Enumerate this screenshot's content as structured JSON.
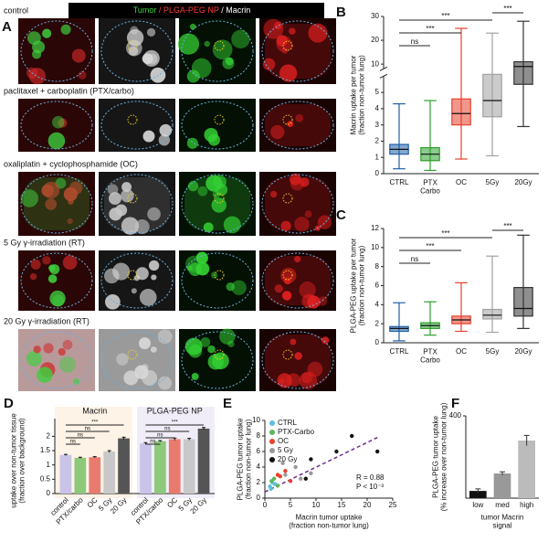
{
  "panel_a": {
    "label": "A",
    "header": [
      "Tumor",
      "/ PLGA-PEG NP",
      "/ Macrin"
    ],
    "rows": [
      "control",
      "paclitaxel + carboplatin (PTX/carbo)",
      "oxaliplatin + cyclophosphamide (OC)",
      "5 Gy γ-irradiation (RT)",
      "20 Gy γ-irradiation (RT)"
    ]
  },
  "chart_data": [
    {
      "type": "box",
      "label": "B",
      "ylabel": "Macrin uptake per tumor\n(fraction non-tumor lung)",
      "categories": [
        "CTRL",
        "PTX\nCarbo",
        "OC",
        "5Gy",
        "20Gy"
      ],
      "colors": [
        "#1f5fa8",
        "#2ca02c",
        "#e8412c",
        "#a0a0a0",
        "#333333"
      ],
      "whisker_low": [
        0.3,
        0.2,
        0.9,
        1.1,
        2.9
      ],
      "q1": [
        1.2,
        0.8,
        3.0,
        3.5,
        5.5
      ],
      "median": [
        1.5,
        1.2,
        3.7,
        4.5,
        9
      ],
      "q3": [
        1.8,
        1.6,
        4.6,
        6.5,
        11
      ],
      "whisker_high": [
        4.3,
        4.5,
        25,
        23,
        28
      ],
      "ylim": [
        0,
        30
      ],
      "ybreak": [
        6,
        8
      ],
      "yticks": [
        0,
        1,
        2,
        3,
        4,
        5,
        10,
        20,
        30
      ],
      "annotations": [
        "ns",
        "***",
        "***",
        "***"
      ]
    },
    {
      "type": "box",
      "label": "C",
      "ylabel": "PLGA-PEG uptake per tumor\n(fraction non-tumor lung)",
      "categories": [
        "CTRL",
        "PTX\nCarbo",
        "OC",
        "5Gy",
        "20Gy"
      ],
      "colors": [
        "#1f5fa8",
        "#2ca02c",
        "#e8412c",
        "#a0a0a0",
        "#333333"
      ],
      "whisker_low": [
        0.2,
        0.8,
        1.2,
        1.1,
        1.5
      ],
      "q1": [
        1.2,
        1.5,
        2.0,
        2.5,
        2.8
      ],
      "median": [
        1.5,
        1.8,
        2.4,
        2.9,
        3.6
      ],
      "q3": [
        1.7,
        2.1,
        2.8,
        3.5,
        5.8
      ],
      "whisker_high": [
        4.2,
        4.3,
        6.3,
        9.1,
        11.3
      ],
      "ylim": [
        0,
        12
      ],
      "yticks": [
        0,
        2,
        4,
        6,
        8,
        10,
        12
      ],
      "annotations": [
        "ns",
        "***",
        "***",
        "***"
      ]
    },
    {
      "type": "grouped_bar",
      "label": "D",
      "ylabel": "uptake over non-tumor tissue\n(fraction over background)",
      "categories": [
        "control",
        "PTX/carbo",
        "OC",
        "5 Gy",
        "20 Gy"
      ],
      "colors": [
        "#c9c4e8",
        "#8dc97a",
        "#e87b6e",
        "#c8c8c8",
        "#555555"
      ],
      "groups": [
        {
          "name": "Macrin",
          "values": [
            1.35,
            1.25,
            1.27,
            1.47,
            1.93
          ],
          "errors": [
            0.02,
            0.02,
            0.02,
            0.03,
            0.04
          ],
          "annotations": [
            "ns",
            "ns",
            "ns",
            "***"
          ]
        },
        {
          "name": "PLGA-PEG NP",
          "values": [
            1.75,
            1.83,
            1.9,
            1.9,
            2.27
          ],
          "errors": [
            0.03,
            0.02,
            0.04,
            0.03,
            0.04
          ],
          "annotations": [
            "ns",
            "ns",
            "ns",
            "***"
          ]
        }
      ],
      "ylim": [
        0,
        2.3
      ],
      "yticks": [
        0,
        0.5,
        1,
        1.5,
        2
      ]
    },
    {
      "type": "scatter",
      "label": "E",
      "xlabel": "Macrin tumor uptake\n(fraction non-tumor lung)",
      "ylabel": "PLGA-PEG tumor uptake\n(fraction non-tumor lung)",
      "series": [
        {
          "name": "CTRL",
          "color": "#5bc0de",
          "x": [
            1,
            1.5,
            2,
            1.2
          ],
          "y": [
            1.5,
            2,
            1.8,
            1.2
          ]
        },
        {
          "name": "PTX-Carbo",
          "color": "#5cb85c",
          "x": [
            1.3,
            2.5,
            1.8
          ],
          "y": [
            2.2,
            1.6,
            2.5
          ]
        },
        {
          "name": "OC",
          "color": "#e8412c",
          "x": [
            3,
            4,
            5,
            2.5
          ],
          "y": [
            2.8,
            3.5,
            2.2,
            3
          ]
        },
        {
          "name": "5 Gy",
          "color": "#999999",
          "x": [
            4,
            6,
            7,
            9,
            3.5
          ],
          "y": [
            3,
            4,
            2.5,
            3.2,
            4.5
          ]
        },
        {
          "name": "20 Gy",
          "color": "#111111",
          "x": [
            8,
            9,
            14,
            17,
            22
          ],
          "y": [
            2.5,
            5,
            6,
            8,
            6
          ]
        }
      ],
      "fit": {
        "x": [
          0,
          22
        ],
        "y": [
          0.8,
          7.8
        ]
      },
      "annotations": [
        "R = 0.88",
        "P < 10⁻³"
      ],
      "xlim": [
        0,
        25
      ],
      "xticks": [
        0,
        5,
        10,
        15,
        20,
        25
      ],
      "ylim": [
        0,
        10
      ],
      "yticks": [
        0,
        2,
        4,
        6,
        8,
        10
      ]
    },
    {
      "type": "bar",
      "label": "F",
      "xlabel": "tumor Macrin\nsignal",
      "ylabel": "PLGA-PEG tumor uptake\n(% increase over non-tumor lung)",
      "categories": [
        "low",
        "med",
        "high"
      ],
      "values": [
        35,
        120,
        280
      ],
      "errors": [
        10,
        8,
        25
      ],
      "colors": [
        "#111111",
        "#999999",
        "#bbbbbb"
      ],
      "ylim": [
        0,
        400
      ],
      "yticks": [
        400
      ]
    }
  ]
}
